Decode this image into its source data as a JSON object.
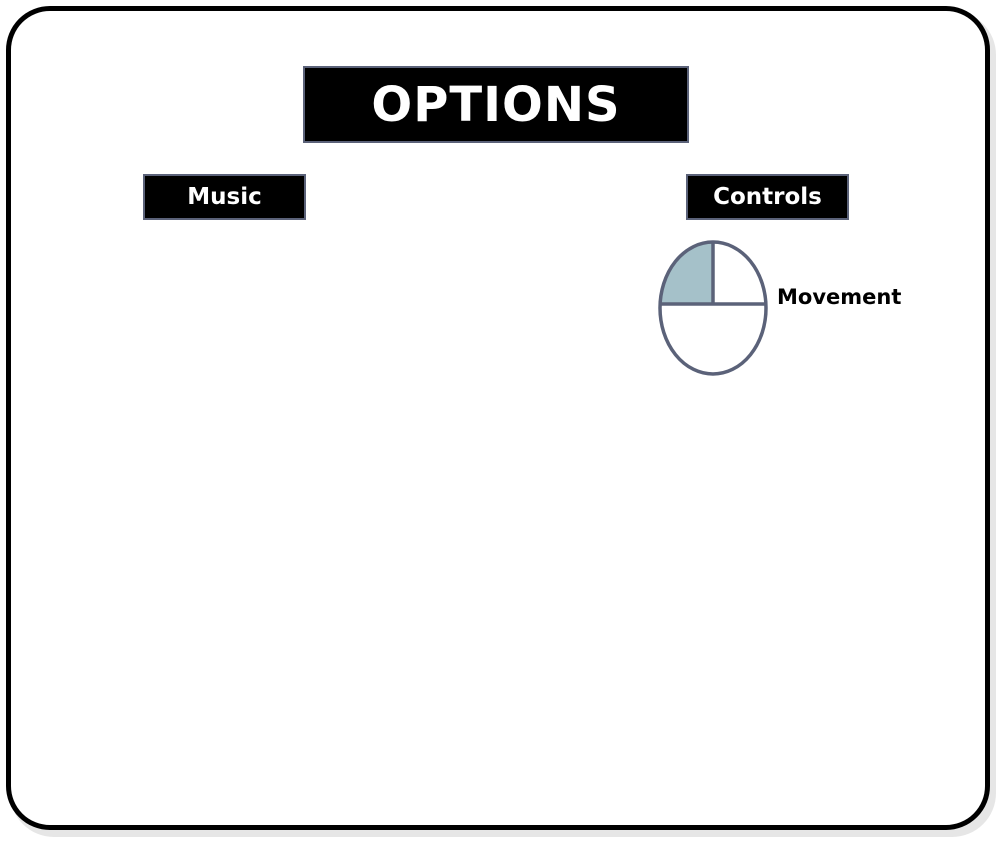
{
  "screen": {
    "title": "OPTIONS"
  },
  "menu": {
    "music_label": "Music",
    "controls_label": "Controls"
  },
  "controls": {
    "mouse_icon": "mouse-left-click-icon",
    "movement_label": "Movement",
    "highlighted_button": "left"
  },
  "colors": {
    "frame": "#000000",
    "button_bg": "#000000",
    "button_border": "#5b6279",
    "button_text": "#ffffff",
    "mouse_outline": "#5b6279",
    "mouse_highlight": "#a5c1c9"
  }
}
